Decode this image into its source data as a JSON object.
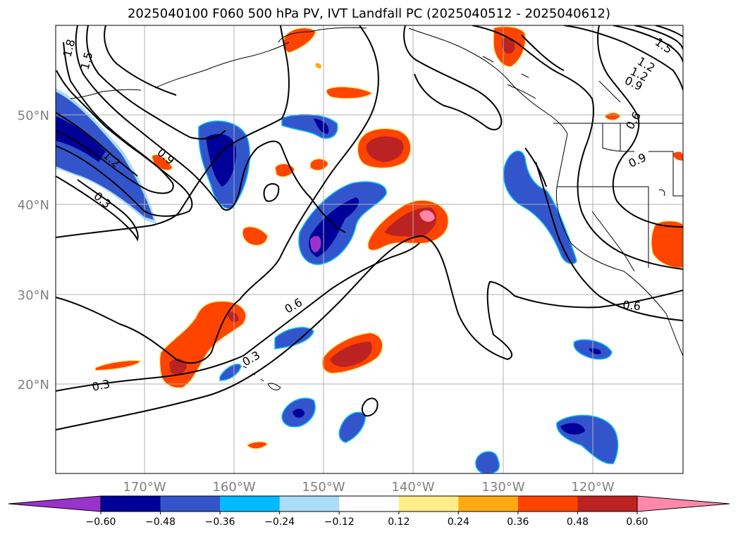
{
  "title": "2025040100 F060 500 hPa PV, IVT Landfall PC (2025040512 - 2025040612)",
  "lon_ticks": [
    "170°W",
    "160°W",
    "150°W",
    "140°W",
    "130°W",
    "120°W"
  ],
  "lat_ticks": [
    "50°N",
    "40°N",
    "30°N",
    "20°N"
  ],
  "colorbar": {
    "colors": [
      "#9933cc",
      "#000099",
      "#3355cc",
      "#00bbff",
      "#aaddf8",
      "#ffffff",
      "#ffee88",
      "#ffaa11",
      "#ff4400",
      "#bb2222",
      "#ff88aa"
    ],
    "tick_labels": [
      "−0.60",
      "−0.48",
      "−0.36",
      "−0.24",
      "−0.12",
      "0.12",
      "0.24",
      "0.36",
      "0.48",
      "0.60"
    ]
  },
  "contour_labels": [
    "1.8",
    "1.5",
    "1.2",
    "0.9",
    "0.3",
    "1.2",
    "0.9",
    "0.6",
    "0.6",
    "0.3",
    "0.3",
    "0.6",
    "0.9",
    "1.2",
    "1.5"
  ],
  "chart_data": {
    "type": "map",
    "projection": "plate-carree",
    "lon_range": [
      -180,
      -110
    ],
    "lat_range": [
      10,
      60
    ],
    "filled_field": "500 hPa PV, IVT Landfall PC",
    "contour_field": "contour lines, levels 0.3–1.8",
    "contour_levels": [
      0.3,
      0.6,
      0.9,
      1.2,
      1.5,
      1.8
    ],
    "colorbar_levels": [
      -0.6,
      -0.48,
      -0.36,
      -0.24,
      -0.12,
      0.12,
      0.24,
      0.36,
      0.48,
      0.6
    ],
    "grid": true,
    "colorbar_position": "bottom"
  }
}
